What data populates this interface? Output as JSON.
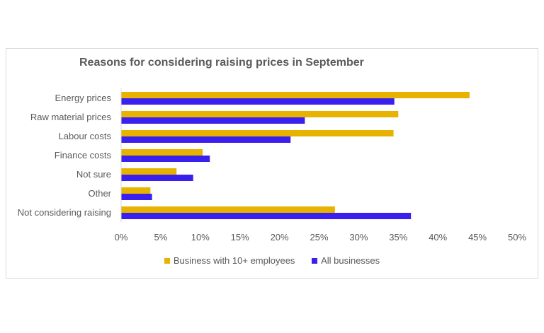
{
  "chart_data": {
    "type": "bar",
    "orientation": "horizontal",
    "title": "Reasons for considering raising prices in September",
    "categories": [
      "Energy prices",
      "Raw material prices",
      "Labour costs",
      "Finance costs",
      "Not sure",
      "Other",
      "Not considering raising"
    ],
    "series": [
      {
        "name": "Business with 10+ employees",
        "color": "#e8b200",
        "values": [
          44.0,
          35.0,
          34.4,
          10.3,
          7.0,
          3.7,
          27.0
        ]
      },
      {
        "name": "All businesses",
        "color": "#3920ef",
        "values": [
          34.5,
          23.2,
          21.4,
          11.2,
          9.1,
          3.9,
          36.6
        ]
      }
    ],
    "xlim": [
      0,
      50
    ],
    "xticks": [
      "0%",
      "5%",
      "10%",
      "15%",
      "20%",
      "25%",
      "30%",
      "35%",
      "40%",
      "45%",
      "50%"
    ],
    "grid": false,
    "legend_position": "bottom"
  }
}
